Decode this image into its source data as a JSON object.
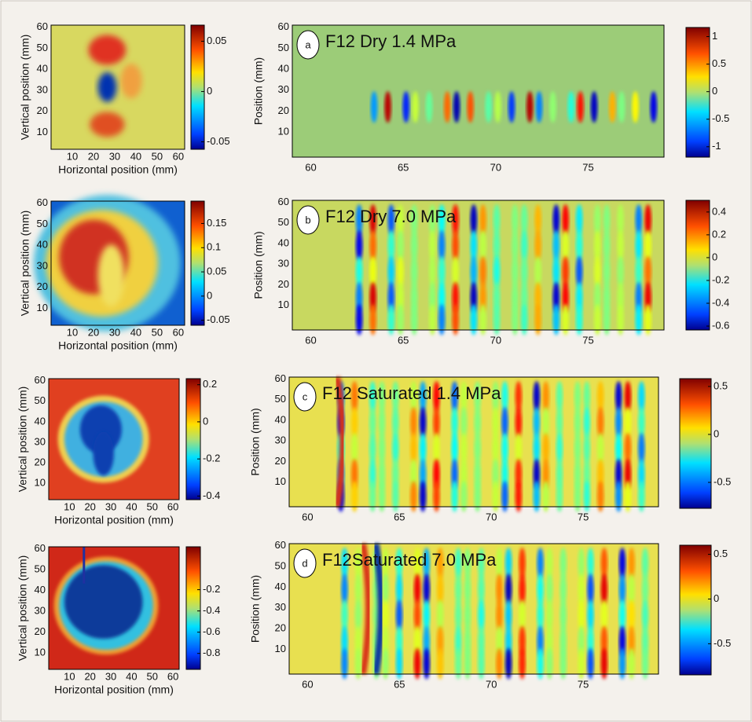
{
  "panels": [
    {
      "map": {
        "x_label": "Horizontal position (mm)",
        "y_label": "Vertical position (mm)",
        "xticks": [
          10,
          20,
          30,
          40,
          50,
          60
        ],
        "yticks": [
          10,
          20,
          30,
          40,
          50,
          60
        ],
        "colorbar_ticks": [
          0.05,
          0,
          -0.05
        ]
      },
      "wave": {
        "label": "a",
        "title": "F12 Dry 1.4 MPa",
        "y_label": "Position (mm)",
        "xticks": [
          60,
          65,
          70,
          75
        ],
        "yticks": [
          10,
          20,
          30,
          40,
          50,
          60
        ],
        "colorbar_ticks": [
          1,
          0.5,
          0,
          -0.5,
          -1
        ]
      }
    },
    {
      "map": {
        "x_label": "Horizontal position (mm)",
        "y_label": "Vertical position (mm)",
        "xticks": [
          10,
          20,
          30,
          40,
          50,
          60
        ],
        "yticks": [
          10,
          20,
          30,
          40,
          50,
          60
        ],
        "colorbar_ticks": [
          0.15,
          0.1,
          0.05,
          0,
          -0.05
        ]
      },
      "wave": {
        "label": "b",
        "title": "F12 Dry 7.0 MPa",
        "y_label": "Position (mm)",
        "xticks": [
          60,
          65,
          70,
          75
        ],
        "yticks": [
          10,
          20,
          30,
          40,
          50,
          60
        ],
        "colorbar_ticks": [
          0.4,
          0.2,
          0,
          -0.2,
          -0.4,
          -0.6
        ]
      }
    },
    {
      "map": {
        "x_label": "Horizontal position (mm)",
        "y_label": "Vertical position (mm)",
        "xticks": [
          10,
          20,
          30,
          40,
          50,
          60
        ],
        "yticks": [
          10,
          20,
          30,
          40,
          50,
          60
        ],
        "colorbar_ticks": [
          0.2,
          0,
          -0.2,
          -0.4
        ]
      },
      "wave": {
        "label": "c",
        "title": "F12 Saturated 1.4 MPa",
        "y_label": "Position (mm)",
        "xticks": [
          60,
          65,
          70,
          75
        ],
        "yticks": [
          10,
          20,
          30,
          40,
          50,
          60
        ],
        "colorbar_ticks": [
          0.5,
          0,
          -0.5
        ]
      }
    },
    {
      "map": {
        "x_label": "Horizontal position (mm)",
        "y_label": "Vertical position (mm)",
        "xticks": [
          10,
          20,
          30,
          40,
          50,
          60
        ],
        "yticks": [
          10,
          20,
          30,
          40,
          50,
          60
        ],
        "colorbar_ticks": [
          -0.2,
          -0.4,
          -0.6,
          -0.8
        ]
      },
      "wave": {
        "label": "d",
        "title": "F12Saturated 7.0 MPa",
        "y_label": "Position (mm)",
        "xticks": [
          60,
          65,
          70,
          75
        ],
        "yticks": [
          10,
          20,
          30,
          40,
          50,
          60
        ],
        "colorbar_ticks": [
          0.5,
          0,
          -0.5
        ]
      }
    }
  ]
}
